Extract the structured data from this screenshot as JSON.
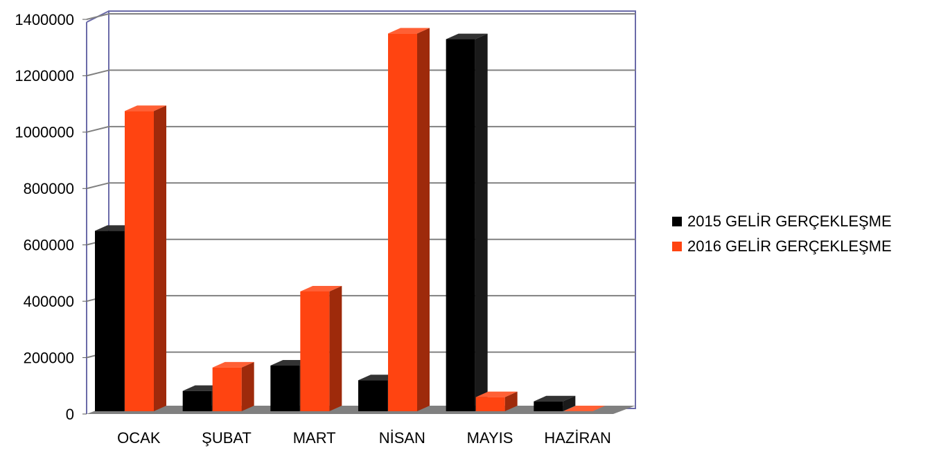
{
  "chart_data": {
    "type": "bar",
    "categories": [
      "OCAK",
      "ŞUBAT",
      "MART",
      "NİSAN",
      "MAYIS",
      "HAZİRAN"
    ],
    "series": [
      {
        "name": "2015 GELİR GERÇEKLEŞME",
        "color": "#000000",
        "values": [
          640000,
          72000,
          162000,
          110000,
          1320000,
          35000
        ]
      },
      {
        "name": "2016 GELİR GERÇEKLEŞME",
        "color": "#ff4411",
        "values": [
          1065000,
          155000,
          425000,
          1340000,
          50000,
          0
        ]
      }
    ],
    "y_ticks": [
      "0",
      "200000",
      "400000",
      "600000",
      "800000",
      "1000000",
      "1200000",
      "1400000"
    ],
    "ylim": [
      0,
      1400000
    ],
    "grid": true,
    "three_d": true,
    "legend_position": "right",
    "colors": {
      "wall_frame": "#6a6aa8",
      "gridline": "#808080",
      "floor": "#808080"
    }
  }
}
